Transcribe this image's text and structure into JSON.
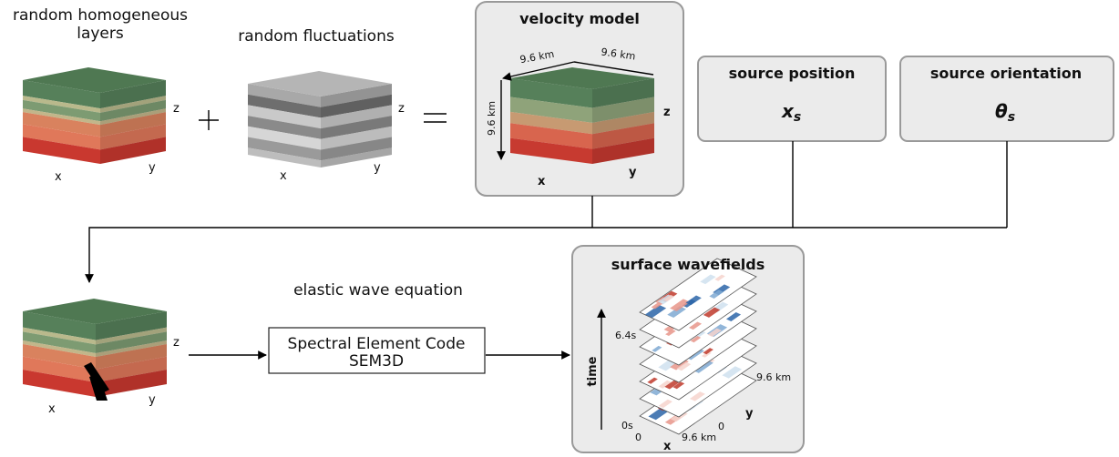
{
  "layers_cube": {
    "title_line1": "random homogeneous",
    "title_line2": "layers",
    "x": "x",
    "y": "y",
    "z": "z"
  },
  "fluctuations_cube": {
    "title": "random fluctuations",
    "x": "x",
    "y": "y",
    "z": "z"
  },
  "velocity_model": {
    "title": "velocity model",
    "width_label": "9.6 km",
    "depth_label": "9.6 km",
    "height_label": "9.6 km",
    "x": "x",
    "y": "y",
    "z": "z"
  },
  "source_position": {
    "title": "source position",
    "symbol": "x",
    "subscript": "s"
  },
  "source_orientation": {
    "title": "source orientation",
    "symbol": "θ",
    "subscript": "s"
  },
  "fault_cube": {
    "x": "x",
    "y": "y",
    "z": "z"
  },
  "solver": {
    "caption": "elastic wave equation",
    "line1": "Spectral Element Code",
    "line2": "SEM3D"
  },
  "surface_wavefields": {
    "title": "surface wavefields",
    "time_axis": "time",
    "time_end": "6.4s",
    "time_start": "0s",
    "x_start": "0",
    "x_end": "9.6 km",
    "y_start": "0",
    "y_end": "9.6 km",
    "x": "x",
    "y": "y"
  }
}
